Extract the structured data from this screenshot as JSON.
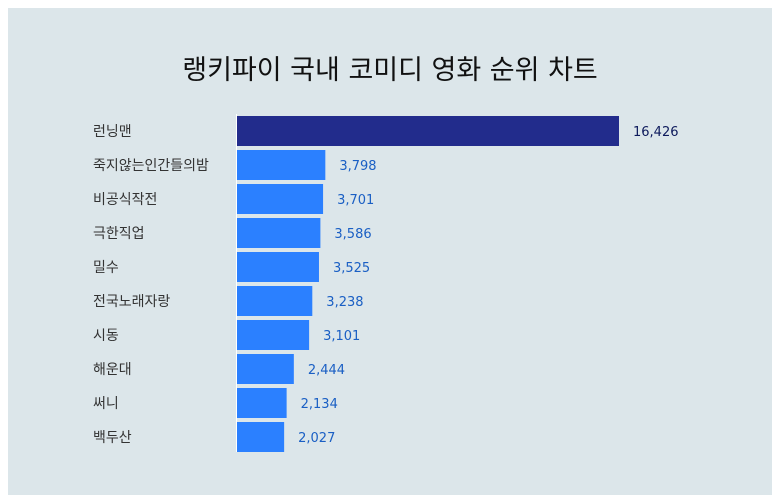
{
  "chart_data": {
    "type": "bar",
    "orientation": "horizontal",
    "title": "랭키파이 국내 코미디 영화 순위 차트",
    "categories": [
      "런닝맨",
      "죽지않는인간들의밤",
      "비공식작전",
      "극한직업",
      "밀수",
      "전국노래자랑",
      "시동",
      "해운대",
      "써니",
      "백두산"
    ],
    "values": [
      16426,
      3798,
      3701,
      3586,
      3525,
      3238,
      3101,
      2444,
      2134,
      2027
    ],
    "value_labels": [
      "16,426",
      "3,798",
      "3,701",
      "3,586",
      "3,525",
      "3,238",
      "3,101",
      "2,444",
      "2,134",
      "2,027"
    ],
    "xlim": [
      0,
      16426
    ],
    "grid": false,
    "legend": "none",
    "colors": {
      "top_bar": "#222c8c",
      "bar": "#2b80ff",
      "top_label": "#0d1a5c",
      "label": "#1a5fc4",
      "panel": "#dce6ea"
    }
  }
}
